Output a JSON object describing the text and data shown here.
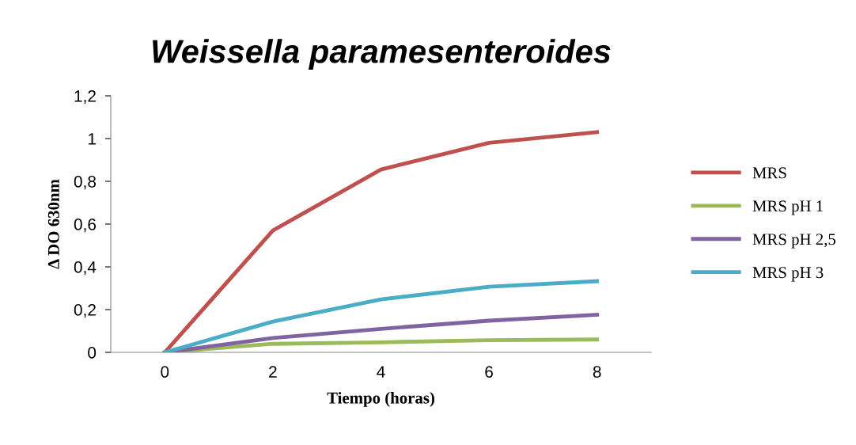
{
  "chart_data": {
    "type": "line",
    "title": "Weissella paramesenteroides",
    "xlabel": "Tiempo (horas)",
    "ylabel": "Δ DO 630nm",
    "x": [
      0,
      2,
      4,
      6,
      8
    ],
    "series": [
      {
        "name": "MRS",
        "color": "#c0504d",
        "values": [
          0,
          0.57,
          0.855,
          0.98,
          1.03
        ]
      },
      {
        "name": "MRS pH 1",
        "color": "#9bbb59",
        "values": [
          0,
          0.04,
          0.047,
          0.057,
          0.06
        ]
      },
      {
        "name": "MRS pH 2,5",
        "color": "#8064a2",
        "values": [
          0,
          0.067,
          0.11,
          0.148,
          0.176
        ]
      },
      {
        "name": "MRS pH 3",
        "color": "#4bacc6",
        "values": [
          0,
          0.144,
          0.248,
          0.307,
          0.333
        ]
      }
    ],
    "xlim": [
      -1,
      9
    ],
    "xticks": [
      0,
      2,
      4,
      6,
      8
    ],
    "ylim": [
      0,
      1.2
    ],
    "yticks": [
      0,
      {
        "value": 0.2,
        "label": "0,2"
      },
      {
        "value": 0.4,
        "label": "0,4"
      },
      {
        "value": 0.6,
        "label": "0,6"
      },
      {
        "value": 0.8,
        "label": "0,8"
      },
      1,
      {
        "value": 1.2,
        "label": "1,2"
      }
    ],
    "grid": false,
    "legend": "right",
    "marker": "none",
    "line_style": "solid"
  }
}
